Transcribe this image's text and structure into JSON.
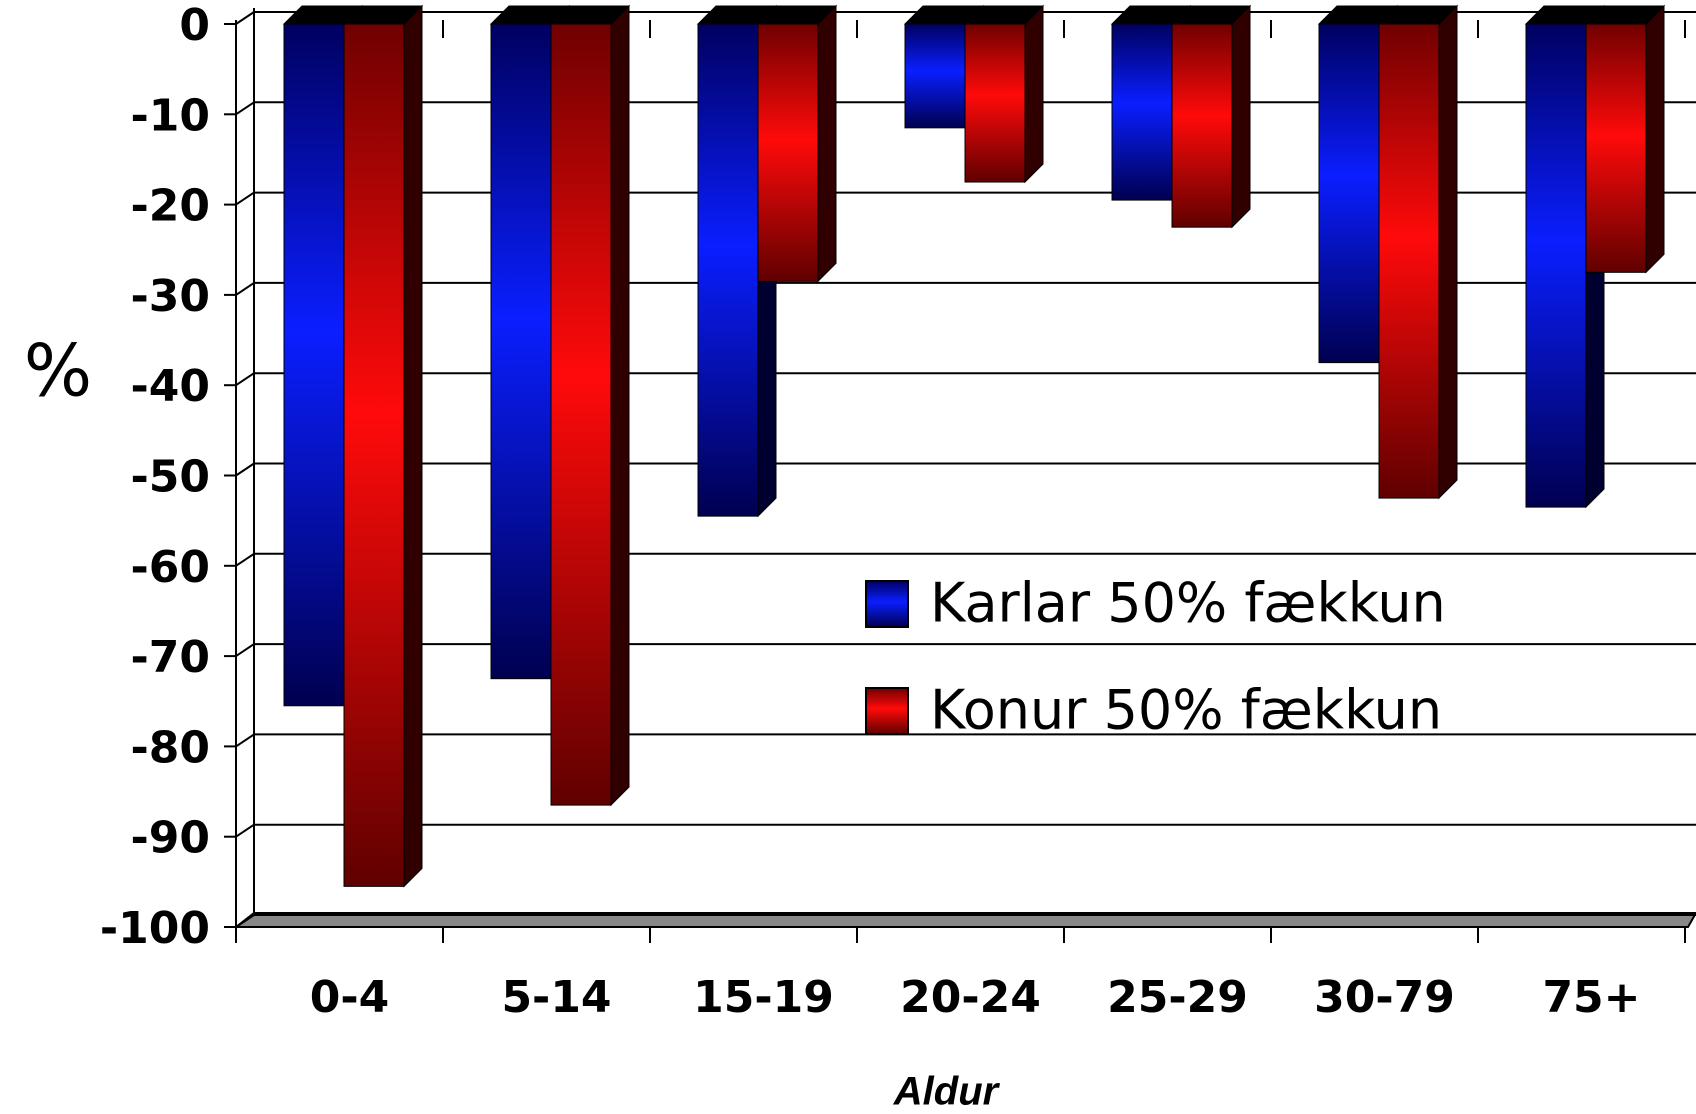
{
  "chart_data": {
    "type": "bar",
    "y_label": "%",
    "x_label": "Aldur",
    "categories": [
      "0-4",
      "5-14",
      "15-19",
      "20-24",
      "25-29",
      "30-79",
      "75+"
    ],
    "series": [
      {
        "name": "Karlar 50% fækkun",
        "color": "#0000ff",
        "values": [
          -75.5,
          -72.5,
          -54.5,
          -11.5,
          -19.5,
          -37.5,
          -53.5
        ]
      },
      {
        "name": "Konur 50% fækkun",
        "color": "#ff0000",
        "values": [
          -95.5,
          -86.5,
          -28.5,
          -17.5,
          -22.5,
          -52.5,
          -27.5
        ]
      }
    ],
    "ylim": [
      -100,
      0
    ],
    "yticks": [
      0,
      -10,
      -20,
      -30,
      -40,
      -50,
      -60,
      -70,
      -80,
      -90,
      -100
    ],
    "grid": true
  }
}
